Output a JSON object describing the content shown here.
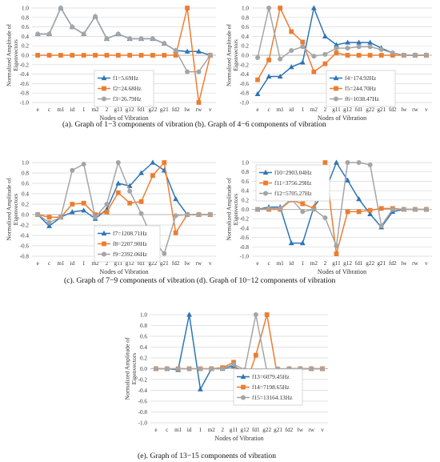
{
  "captions": {
    "row1": "(a). Graph of 1−3 components of vibration (b). Graph of 4−6 components of vibration",
    "row2": "(c). Graph of 7−9 components of vibration (d). Graph of 10−12 components of vibration",
    "row3": "(e). Graph of 13−15 components of vibration"
  },
  "colors": {
    "blue": "#2E75B6",
    "orange": "#ED7D31",
    "gray": "#A5A5A5"
  },
  "chart_data": [
    {
      "type": "line",
      "panel": "a",
      "xlabel": "Nodes of Vibration",
      "ylabel": "Normalized Amplitude of Eigenvectors",
      "categories": [
        "e",
        "c",
        "m1",
        "id",
        "1",
        "m2",
        "2",
        "g11",
        "g12",
        "fd1",
        "g22",
        "g21",
        "fd2",
        "lw",
        "rw",
        "v"
      ],
      "ylim": [
        -1,
        1
      ],
      "ystep": 0.2,
      "grid": true,
      "legend": "inside-lower-center",
      "series": [
        {
          "name": "f1=5.69Hz",
          "color": "#2E75B6",
          "marker": "triangle",
          "values": [
            0.45,
            0.45,
            1.0,
            0.6,
            0.45,
            0.82,
            0.35,
            0.45,
            0.35,
            0.35,
            0.35,
            0.25,
            0.1,
            0.08,
            0.08,
            0.0
          ]
        },
        {
          "name": "f2=24.68Hz",
          "color": "#ED7D31",
          "marker": "square",
          "values": [
            0,
            0,
            0,
            0,
            0,
            0,
            0,
            0,
            0,
            0,
            0,
            0,
            0,
            1.0,
            -1.0,
            0
          ]
        },
        {
          "name": "f3=26.79Hz",
          "color": "#A5A5A5",
          "marker": "circle",
          "values": [
            0.45,
            0.45,
            1.0,
            0.6,
            0.45,
            0.82,
            0.35,
            0.45,
            0.35,
            0.35,
            0.35,
            0.25,
            0.1,
            -0.35,
            -0.35,
            0.0
          ]
        }
      ]
    },
    {
      "type": "line",
      "panel": "b",
      "xlabel": "Nodes of Vibration",
      "ylabel": "Normalized Amplitude of Eigenvectors",
      "categories": [
        "e",
        "c",
        "m1",
        "id",
        "1",
        "m2",
        "2",
        "g11",
        "g12",
        "fd1",
        "g22",
        "g21",
        "fd2",
        "lw",
        "rw",
        "v"
      ],
      "ylim": [
        -1,
        1
      ],
      "ystep": 0.2,
      "grid": true,
      "legend": "inside-lower-right",
      "series": [
        {
          "name": "f4=174.92Hz",
          "color": "#2E75B6",
          "marker": "triangle",
          "values": [
            -0.82,
            -0.45,
            -0.45,
            -0.25,
            -0.15,
            1.0,
            0.4,
            0.22,
            0.27,
            0.27,
            0.27,
            0.15,
            0.05,
            0,
            0,
            0
          ]
        },
        {
          "name": "f5=244.70Hz",
          "color": "#ED7D31",
          "marker": "square",
          "values": [
            -0.52,
            -0.1,
            1.0,
            0.5,
            0.28,
            -0.35,
            -0.18,
            0.05,
            0,
            0,
            0,
            0,
            0,
            0,
            0,
            0
          ]
        },
        {
          "name": "f6=1038.47Hz",
          "color": "#A5A5A5",
          "marker": "circle",
          "values": [
            -0.05,
            1.0,
            -0.08,
            0.1,
            0.18,
            -0.02,
            0.02,
            0.15,
            0.15,
            0.18,
            0.18,
            0.12,
            0.05,
            0,
            0,
            0
          ]
        }
      ]
    },
    {
      "type": "line",
      "panel": "c",
      "xlabel": "Nodes of Vibration",
      "ylabel": "Normalized Amplitude of Eigenvectors",
      "categories": [
        "e",
        "c",
        "m1",
        "id",
        "1",
        "m2",
        "2",
        "g11",
        "g12",
        "fd1",
        "g22",
        "g21",
        "fd2",
        "lw",
        "rw",
        "v"
      ],
      "ylim": [
        -0.8,
        1
      ],
      "ystep": 0.2,
      "grid": true,
      "legend": "inside-lower-center",
      "series": [
        {
          "name": "f7=1208.71Hz",
          "color": "#2E75B6",
          "marker": "triangle",
          "values": [
            0,
            -0.22,
            -0.05,
            0.05,
            0.08,
            -0.08,
            0.1,
            0.6,
            0.55,
            0.8,
            1.0,
            0.85,
            0.3,
            0,
            0,
            0
          ]
        },
        {
          "name": "f8=2207.90Hz",
          "color": "#ED7D31",
          "marker": "square",
          "values": [
            0,
            -0.05,
            -0.05,
            0.2,
            0.22,
            0,
            0.05,
            0.42,
            0.22,
            0.25,
            0.75,
            1.0,
            -0.35,
            0,
            0,
            0
          ]
        },
        {
          "name": "f9=2392.06Hz",
          "color": "#A5A5A5",
          "marker": "circle",
          "values": [
            0,
            -0.15,
            -0.05,
            0.85,
            0.97,
            -0.05,
            0.2,
            1.0,
            0.45,
            0.02,
            -0.48,
            -0.75,
            -0.02,
            0,
            0,
            0
          ]
        }
      ]
    },
    {
      "type": "line",
      "panel": "d",
      "xlabel": "Nodes of Vibration",
      "ylabel": "Normalized Amplitude of Eigenvectors",
      "categories": [
        "e",
        "c",
        "m1",
        "id",
        "1",
        "m2",
        "2",
        "g11",
        "g12",
        "fd1",
        "g22",
        "g21",
        "fd2",
        "lw",
        "rw",
        "v"
      ],
      "ylim": [
        -1,
        1
      ],
      "ystep": 0.2,
      "grid": true,
      "legend": "inside-upper-left",
      "series": [
        {
          "name": "f10=2903.04Hz",
          "color": "#2E75B6",
          "marker": "triangle",
          "values": [
            0,
            0.05,
            0.05,
            -0.72,
            -0.72,
            0.05,
            0.38,
            1.0,
            0.62,
            0.22,
            -0.1,
            -0.38,
            -0.05,
            0,
            0,
            0
          ]
        },
        {
          "name": "f11=3756.29Hz",
          "color": "#ED7D31",
          "marker": "square",
          "values": [
            0,
            0,
            0,
            0.2,
            0.12,
            0.02,
            1.0,
            -0.95,
            -0.05,
            -0.05,
            -0.02,
            0.02,
            0.02,
            0,
            0,
            0
          ]
        },
        {
          "name": "f12=5705.27Hz",
          "color": "#A5A5A5",
          "marker": "circle",
          "values": [
            0,
            0.02,
            0.02,
            0.22,
            -0.05,
            0.0,
            -0.18,
            -0.78,
            1.0,
            1.0,
            0.95,
            -0.35,
            0.0,
            0,
            0,
            0
          ]
        }
      ]
    },
    {
      "type": "line",
      "panel": "e",
      "xlabel": "Nodes of Vibration",
      "ylabel": "Normalized Amplitude of Eigenvectors",
      "categories": [
        "e",
        "c",
        "m1",
        "id",
        "1",
        "m2",
        "2",
        "g11",
        "g12",
        "fd1",
        "g22",
        "g21",
        "fd2",
        "lw",
        "rw",
        "v"
      ],
      "ylim": [
        -1,
        1
      ],
      "ystep": 0.2,
      "grid": true,
      "legend": "inside-lower-right",
      "series": [
        {
          "name": "f13=6079.45Hz",
          "color": "#2E75B6",
          "marker": "triangle",
          "values": [
            0,
            0,
            -0.02,
            1.0,
            -0.38,
            0,
            0,
            0.05,
            -0.08,
            -0.1,
            -0.12,
            -0.05,
            0,
            0,
            0,
            0
          ]
        },
        {
          "name": "f14=7198.65Hz",
          "color": "#ED7D31",
          "marker": "square",
          "values": [
            0,
            0,
            0,
            0,
            0,
            0,
            0.02,
            0.12,
            -0.35,
            0.25,
            1.0,
            -0.2,
            0,
            0,
            0,
            0
          ]
        },
        {
          "name": "f15=13164.13Hz",
          "color": "#A5A5A5",
          "marker": "circle",
          "values": [
            0,
            0,
            0,
            0,
            0,
            0,
            0,
            0.08,
            -0.02,
            1.0,
            -0.05,
            0,
            0,
            0,
            0,
            0
          ]
        }
      ]
    }
  ]
}
